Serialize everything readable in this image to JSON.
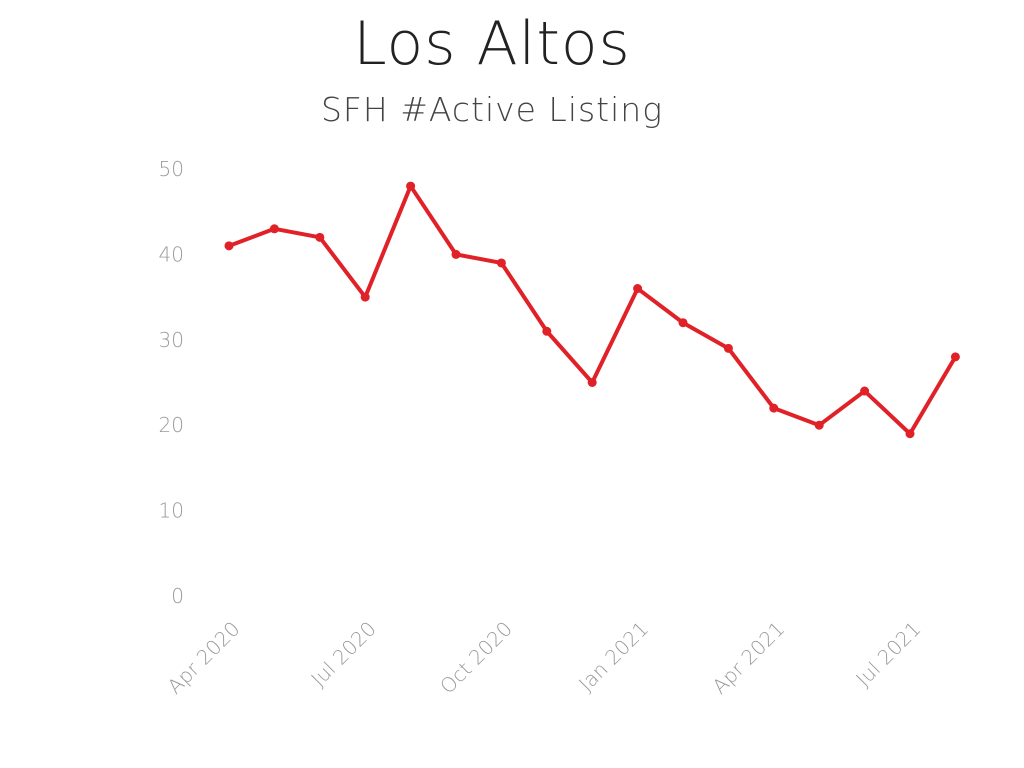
{
  "chart_data": {
    "type": "line",
    "title": "Los Altos",
    "subtitle": "SFH #Active Listing",
    "x": [
      "2020-04",
      "2020-05",
      "2020-06",
      "2020-07",
      "2020-08",
      "2020-09",
      "2020-10",
      "2020-11",
      "2020-12",
      "2021-01",
      "2021-02",
      "2021-03",
      "2021-04",
      "2021-05",
      "2021-06",
      "2021-07",
      "2021-08"
    ],
    "series": [
      {
        "values": [
          41,
          43,
          42,
          35,
          48,
          40,
          39,
          31,
          25,
          36,
          32,
          29,
          22,
          20,
          24,
          19,
          28
        ]
      }
    ],
    "x_tick_labels": [
      "Apr 2020",
      "Jul 2020",
      "Oct 2020",
      "Jan 2021",
      "Apr 2021",
      "Jul 2021"
    ],
    "y_ticks": [
      0,
      10,
      20,
      30,
      40,
      50
    ],
    "ylim": [
      0,
      50
    ],
    "grid": false,
    "color": "#e02127"
  }
}
